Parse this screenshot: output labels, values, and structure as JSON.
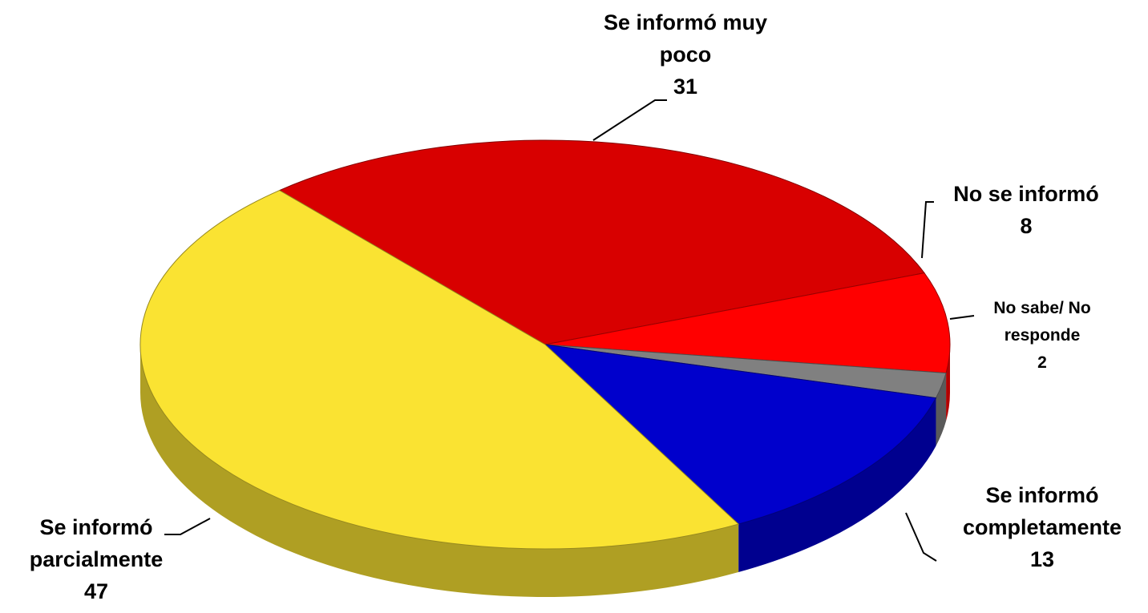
{
  "chart_data": {
    "type": "pie",
    "categories": [
      "Se informó muy poco",
      "No se informó",
      "No sabe/ No responde",
      "Se informó completamente",
      "Se informó parcialmente"
    ],
    "values": [
      31,
      8,
      2,
      13,
      47
    ],
    "colors": [
      "#d80000",
      "#ff0000",
      "#808080",
      "#0000cc",
      "#fae332"
    ]
  }
}
